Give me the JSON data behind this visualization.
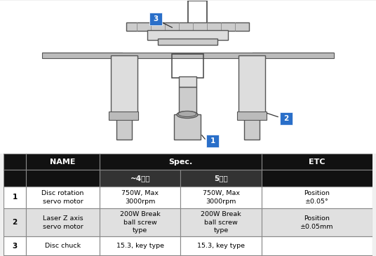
{
  "table_header_bg": "#111111",
  "table_header_text": "#ffffff",
  "table_subheader_bg": "#333333",
  "table_subheader_text": "#ffffff",
  "table_row_odd_bg": "#ffffff",
  "table_row_even_bg": "#e0e0e0",
  "table_border_color": "#888888",
  "label_box_color": "#2a6fc9",
  "label_text_color": "#ffffff",
  "spec_header": "Spec.",
  "col_sub_labels": [
    "~4호기",
    "5호기"
  ],
  "rows": [
    {
      "num": "1",
      "name": "Disc rotation\nservo motor",
      "spec4": "750W, Max\n3000rpm",
      "spec5": "750W, Max\n3000rpm",
      "etc": "Position\n±0.05°"
    },
    {
      "num": "2",
      "name": "Laser Z axis\nservo motor",
      "spec4": "200W Break\nball screw\ntype",
      "spec5": "200W Break\nball screw\ntype",
      "etc": "Position\n±0.05mm"
    },
    {
      "num": "3",
      "name": "Disc chuck",
      "spec4": "15.3, key type",
      "spec5": "15.3, key type",
      "etc": ""
    }
  ],
  "img_bg": "#ffffff",
  "fig_bg": "#f0f0f0"
}
